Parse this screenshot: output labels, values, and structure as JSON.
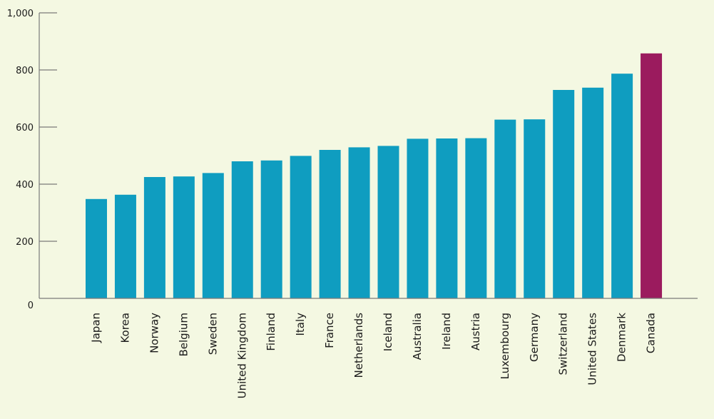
{
  "chart_data": {
    "type": "bar",
    "title": "",
    "xlabel": "",
    "ylabel": "",
    "ylim": [
      0,
      1000
    ],
    "yticks": [
      0,
      200,
      400,
      600,
      800,
      1000
    ],
    "ytick_labels": [
      "0",
      "200",
      "400",
      "600",
      "800",
      "1,000"
    ],
    "grid": false,
    "categories": [
      "Japan",
      "Korea",
      "Norway",
      "Belgium",
      "Sweden",
      "United Kingdom",
      "Finland",
      "Italy",
      "France",
      "Netherlands",
      "Iceland",
      "Australia",
      "Ireland",
      "Austria",
      "Luxembourg",
      "Germany",
      "Switzerland",
      "United States",
      "Denmark",
      "Canada"
    ],
    "values": [
      348,
      363,
      425,
      427,
      439,
      480,
      483,
      499,
      520,
      529,
      534,
      559,
      560,
      561,
      626,
      627,
      730,
      738,
      787,
      858
    ],
    "highlight": "Canada",
    "colors": {
      "bar": "#0f9dc0",
      "highlight": "#9b1b5e",
      "axis": "#7a7a7a",
      "background": "#f4f8e2"
    }
  }
}
